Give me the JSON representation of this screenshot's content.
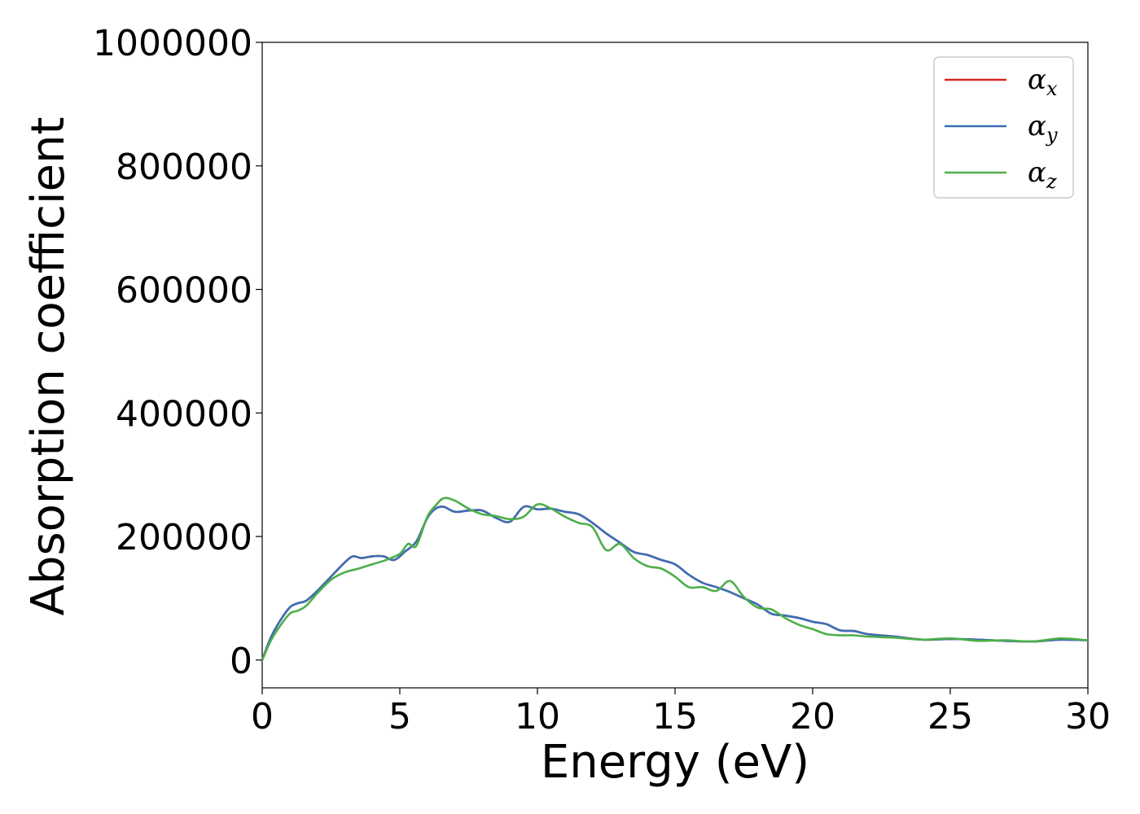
{
  "chart_data": {
    "type": "line",
    "xlabel": "Energy (eV)",
    "ylabel": "Absorption coefficient",
    "xlim": [
      0,
      30
    ],
    "ylim": [
      -45000,
      1000000
    ],
    "xticks": [
      0,
      5,
      10,
      15,
      20,
      25,
      30
    ],
    "yticks": [
      0,
      200000,
      400000,
      600000,
      800000,
      1000000
    ],
    "grid": false,
    "legend_position": "top-right",
    "series": [
      {
        "name": "α",
        "subscript": "x",
        "color": "#d62728",
        "x": [
          0,
          0.3,
          0.6,
          1.0,
          1.3,
          1.6,
          2.0,
          2.5,
          3.0,
          3.3,
          3.6,
          4.0,
          4.4,
          4.8,
          5.2,
          5.6,
          6.0,
          6.3,
          6.6,
          7.0,
          7.5,
          8.0,
          8.5,
          9.0,
          9.5,
          10.0,
          10.5,
          11.0,
          11.5,
          12.0,
          12.5,
          13.0,
          13.5,
          14.0,
          14.5,
          15.0,
          15.5,
          16.0,
          16.5,
          17.0,
          17.5,
          18.0,
          18.5,
          19.0,
          19.5,
          20.0,
          20.5,
          21.0,
          21.5,
          22.0,
          23.0,
          24.0,
          25.0,
          26.0,
          27.0,
          28.0,
          29.0,
          30.0
        ],
        "values": [
          0,
          35000,
          60000,
          85000,
          92000,
          96000,
          112000,
          135000,
          158000,
          168000,
          165000,
          168000,
          168000,
          162000,
          176000,
          192000,
          230000,
          245000,
          248000,
          240000,
          242000,
          242000,
          230000,
          224000,
          248000,
          244000,
          245000,
          240000,
          236000,
          222000,
          205000,
          190000,
          175000,
          170000,
          162000,
          155000,
          138000,
          125000,
          118000,
          110000,
          100000,
          90000,
          75000,
          72000,
          68000,
          62000,
          58000,
          48000,
          47000,
          42000,
          38000,
          33000,
          34000,
          33000,
          31000,
          30000,
          33000,
          32000
        ]
      },
      {
        "name": "α",
        "subscript": "y",
        "color": "#3a6fb5",
        "x": [
          0,
          0.3,
          0.6,
          1.0,
          1.3,
          1.6,
          2.0,
          2.5,
          3.0,
          3.3,
          3.6,
          4.0,
          4.4,
          4.8,
          5.2,
          5.6,
          6.0,
          6.3,
          6.6,
          7.0,
          7.5,
          8.0,
          8.5,
          9.0,
          9.5,
          10.0,
          10.5,
          11.0,
          11.5,
          12.0,
          12.5,
          13.0,
          13.5,
          14.0,
          14.5,
          15.0,
          15.5,
          16.0,
          16.5,
          17.0,
          17.5,
          18.0,
          18.5,
          19.0,
          19.5,
          20.0,
          20.5,
          21.0,
          21.5,
          22.0,
          23.0,
          24.0,
          25.0,
          26.0,
          27.0,
          28.0,
          29.0,
          30.0
        ],
        "values": [
          0,
          35000,
          60000,
          85000,
          92000,
          96000,
          112000,
          135000,
          158000,
          168000,
          165000,
          168000,
          168000,
          162000,
          176000,
          192000,
          230000,
          245000,
          248000,
          240000,
          242000,
          242000,
          230000,
          224000,
          248000,
          244000,
          245000,
          240000,
          236000,
          222000,
          205000,
          190000,
          175000,
          170000,
          162000,
          155000,
          138000,
          125000,
          118000,
          110000,
          100000,
          90000,
          75000,
          72000,
          68000,
          62000,
          58000,
          48000,
          47000,
          42000,
          38000,
          33000,
          34000,
          33000,
          31000,
          30000,
          33000,
          32000
        ]
      },
      {
        "name": "α",
        "subscript": "z",
        "color": "#4daf4a",
        "x": [
          0,
          0.3,
          0.6,
          1.0,
          1.3,
          1.6,
          2.0,
          2.5,
          3.0,
          3.5,
          4.0,
          4.5,
          5.0,
          5.3,
          5.6,
          6.0,
          6.3,
          6.6,
          7.0,
          7.5,
          8.0,
          8.5,
          9.0,
          9.5,
          10.0,
          10.5,
          11.0,
          11.5,
          12.0,
          12.5,
          13.0,
          13.5,
          14.0,
          14.5,
          15.0,
          15.5,
          16.0,
          16.5,
          17.0,
          17.5,
          18.0,
          18.5,
          19.0,
          19.5,
          20.0,
          20.5,
          21.0,
          21.5,
          22.0,
          23.0,
          24.0,
          25.0,
          26.0,
          27.0,
          28.0,
          29.0,
          30.0
        ],
        "values": [
          0,
          30000,
          52000,
          75000,
          80000,
          88000,
          108000,
          130000,
          142000,
          148000,
          155000,
          162000,
          172000,
          188000,
          185000,
          232000,
          250000,
          262000,
          258000,
          245000,
          236000,
          233000,
          228000,
          232000,
          252000,
          245000,
          232000,
          222000,
          215000,
          178000,
          188000,
          165000,
          152000,
          148000,
          135000,
          118000,
          118000,
          112000,
          128000,
          102000,
          85000,
          82000,
          68000,
          57000,
          50000,
          42000,
          40000,
          40000,
          38000,
          36000,
          33000,
          35000,
          31000,
          32000,
          30000,
          35000,
          32000
        ]
      }
    ]
  }
}
